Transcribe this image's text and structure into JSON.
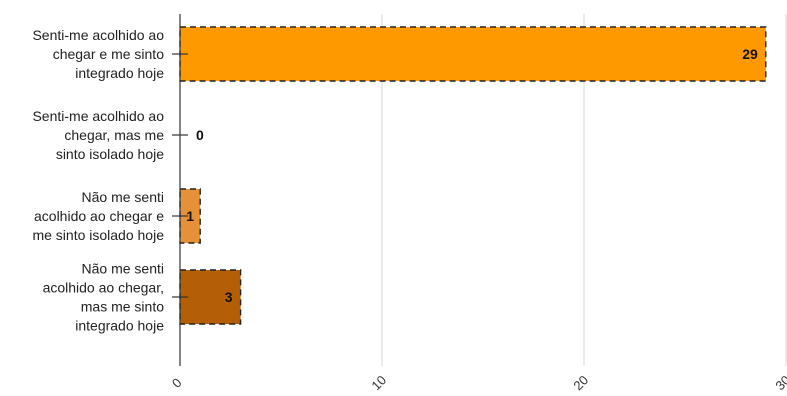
{
  "chart_data": {
    "type": "bar",
    "orientation": "horizontal",
    "categories": [
      [
        "Senti-me acolhido ao",
        "chegar e me sinto",
        "integrado hoje"
      ],
      [
        "Senti-me acolhido ao",
        "chegar, mas me",
        "sinto isolado hoje"
      ],
      [
        "Não me senti",
        "acolhido ao chegar e",
        "me sinto isolado hoje"
      ],
      [
        "Não me senti",
        "acolhido ao chegar,",
        "mas me sinto",
        "integrado hoje"
      ]
    ],
    "values": [
      29,
      0,
      1,
      3
    ],
    "bar_colors": [
      "#ff9900",
      "#ff9900",
      "#e69138",
      "#b45f06"
    ],
    "xlim": [
      0,
      30
    ],
    "x_ticks": [
      0,
      10,
      20,
      30
    ],
    "x_tick_labels": [
      "0",
      "10",
      "20",
      "30"
    ],
    "grid": true,
    "bar_border": "dashed",
    "title": "",
    "xlabel": "",
    "ylabel": ""
  }
}
